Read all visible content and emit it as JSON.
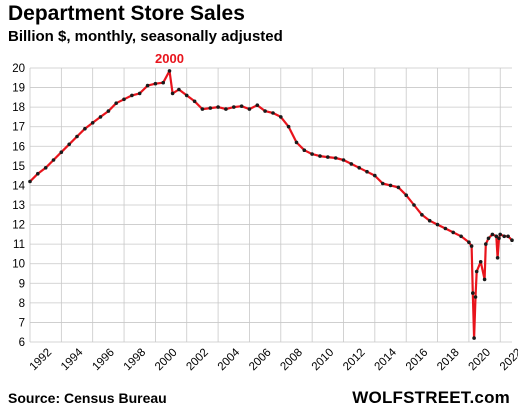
{
  "header": {
    "title": "Department Store Sales",
    "subtitle": "Billion $, monthly, seasonally adjusted"
  },
  "footer": {
    "source": "Source: Census Bureau",
    "brand": "WOLFSTREET.com"
  },
  "colors": {
    "line": "#e8141c",
    "marker": "#1a1a1a",
    "grid": "#c8c8c8",
    "annotation": "#e8141c"
  },
  "chart_data": {
    "type": "line",
    "title": "Department Store Sales",
    "subtitle": "Billion $, monthly, seasonally adjusted",
    "xlabel": "",
    "ylabel": "",
    "xlim": [
      1992,
      2022.75
    ],
    "ylim": [
      6,
      20
    ],
    "x_ticks": [
      "1992",
      "1994",
      "1996",
      "1998",
      "2000",
      "2002",
      "2004",
      "2006",
      "2008",
      "2010",
      "2012",
      "2014",
      "2016",
      "2018",
      "2020",
      "2022"
    ],
    "y_ticks": [
      "6",
      "7",
      "8",
      "9",
      "10",
      "11",
      "12",
      "13",
      "14",
      "15",
      "16",
      "17",
      "18",
      "19",
      "20"
    ],
    "grid": true,
    "markers": true,
    "annotations": [
      {
        "text": "2000",
        "x": 2000.9,
        "y": 19.85
      }
    ],
    "series": [
      {
        "x": [
          1992.0,
          1992.5,
          1993.0,
          1993.5,
          1994.0,
          1994.5,
          1995.0,
          1995.5,
          1996.0,
          1996.5,
          1997.0,
          1997.5,
          1998.0,
          1998.5,
          1999.0,
          1999.5,
          2000.0,
          2000.5,
          2000.9,
          2001.1,
          2001.5,
          2002.0,
          2002.5,
          2003.0,
          2003.5,
          2004.0,
          2004.5,
          2005.0,
          2005.5,
          2006.0,
          2006.5,
          2007.0,
          2007.5,
          2008.0,
          2008.5,
          2009.0,
          2009.5,
          2010.0,
          2010.5,
          2011.0,
          2011.5,
          2012.0,
          2012.5,
          2013.0,
          2013.5,
          2014.0,
          2014.5,
          2015.0,
          2015.5,
          2016.0,
          2016.5,
          2017.0,
          2017.5,
          2018.0,
          2018.5,
          2019.0,
          2019.5,
          2020.0,
          2020.17,
          2020.25,
          2020.33,
          2020.42,
          2020.5,
          2020.75,
          2021.0,
          2021.08,
          2021.25,
          2021.5,
          2021.75,
          2021.83,
          2021.92,
          2022.0,
          2022.25,
          2022.5,
          2022.75
        ],
        "y": [
          14.2,
          14.6,
          14.9,
          15.3,
          15.7,
          16.1,
          16.5,
          16.9,
          17.2,
          17.5,
          17.8,
          18.2,
          18.4,
          18.6,
          18.7,
          19.1,
          19.2,
          19.25,
          19.85,
          18.7,
          18.9,
          18.6,
          18.3,
          17.9,
          17.95,
          18.0,
          17.9,
          18.0,
          18.05,
          17.9,
          18.1,
          17.8,
          17.7,
          17.5,
          17.0,
          16.2,
          15.8,
          15.6,
          15.5,
          15.45,
          15.4,
          15.3,
          15.1,
          14.9,
          14.7,
          14.5,
          14.1,
          14.0,
          13.9,
          13.5,
          13.0,
          12.5,
          12.2,
          12.0,
          11.8,
          11.6,
          11.4,
          11.1,
          10.9,
          8.5,
          6.2,
          8.3,
          9.6,
          10.1,
          9.2,
          11.0,
          11.3,
          11.5,
          11.4,
          10.3,
          11.3,
          11.5,
          11.4,
          11.4,
          11.2
        ]
      }
    ]
  }
}
